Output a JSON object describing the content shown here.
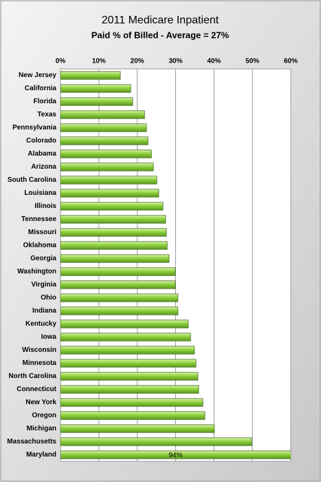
{
  "chart_data": {
    "type": "hbar",
    "title": "2011 Medicare Inpatient",
    "subtitle": "Paid % of Billed - Average = 27%",
    "categories": [
      "New Jersey",
      "California",
      "Florida",
      "Texas",
      "Pennsylvania",
      "Colorado",
      "Alabama",
      "Arizona",
      "South Carolina",
      "Louisiana",
      "Illinois",
      "Tennessee",
      "Missouri",
      "Oklahoma",
      "Georgia",
      "Washington",
      "Virginia",
      "Ohio",
      "Indiana",
      "Kentucky",
      "Iowa",
      "Wisconsin",
      "Minnesota",
      "North Carolina",
      "Connecticut",
      "New York",
      "Oregon",
      "Michigan",
      "Massachusetts",
      "Maryland"
    ],
    "values": [
      15.6,
      18.3,
      18.8,
      21.9,
      22.4,
      22.8,
      23.7,
      24.2,
      25.1,
      25.6,
      26.7,
      27.4,
      27.6,
      27.8,
      28.3,
      29.9,
      29.9,
      30.6,
      30.6,
      33.3,
      33.9,
      34.9,
      35.3,
      35.8,
      36.0,
      37.1,
      37.6,
      40.1,
      49.8,
      94
    ],
    "value_labels": [
      null,
      null,
      null,
      null,
      null,
      null,
      null,
      null,
      null,
      null,
      null,
      null,
      null,
      null,
      null,
      null,
      null,
      null,
      null,
      null,
      null,
      null,
      null,
      null,
      null,
      null,
      null,
      null,
      null,
      "94%"
    ],
    "color": "#8fd13f",
    "xlim": [
      0,
      60
    ],
    "xticks": [
      {
        "value": 0,
        "label": "0%"
      },
      {
        "value": 10,
        "label": "10%"
      },
      {
        "value": 20,
        "label": "20%"
      },
      {
        "value": 30,
        "label": "30%"
      },
      {
        "value": 40,
        "label": "40%"
      },
      {
        "value": 50,
        "label": "50%"
      },
      {
        "value": 60,
        "label": "60%"
      }
    ],
    "grid": true
  }
}
